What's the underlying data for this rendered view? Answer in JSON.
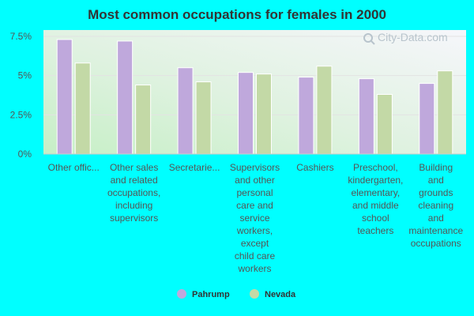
{
  "page": {
    "background": "#00ffff",
    "watermark": "City-Data.com",
    "watermark_icon": "magnifier-icon"
  },
  "chart_data": {
    "type": "bar",
    "title": "Most common occupations for females in 2000",
    "xlabel": "",
    "ylabel": "",
    "ylim": [
      0,
      7.5
    ],
    "y_ticks": [
      "0%",
      "2.5%",
      "5%",
      "7.5%"
    ],
    "grid": true,
    "legend_position": "bottom-center",
    "categories": [
      [
        "Other offic..."
      ],
      [
        "Other sales",
        "and related",
        "occupations,",
        "including",
        "supervisors"
      ],
      [
        "Secretarie..."
      ],
      [
        "Supervisors",
        "and other",
        "personal",
        "care and",
        "service",
        "workers,",
        "except",
        "child care",
        "workers"
      ],
      [
        "Cashiers"
      ],
      [
        "Preschool,",
        "kindergarten,",
        "elementary,",
        "and middle",
        "school",
        "teachers"
      ],
      [
        "Building",
        "and",
        "grounds",
        "cleaning",
        "and",
        "maintenance",
        "occupations"
      ]
    ],
    "series": [
      {
        "name": "Pahrump",
        "color": "#bfa8dc",
        "values": [
          7.3,
          7.2,
          5.5,
          5.2,
          4.9,
          4.8,
          4.5
        ]
      },
      {
        "name": "Nevada",
        "color": "#c3d9a6",
        "values": [
          5.8,
          4.4,
          4.6,
          5.1,
          5.6,
          3.8,
          5.3
        ]
      }
    ]
  }
}
